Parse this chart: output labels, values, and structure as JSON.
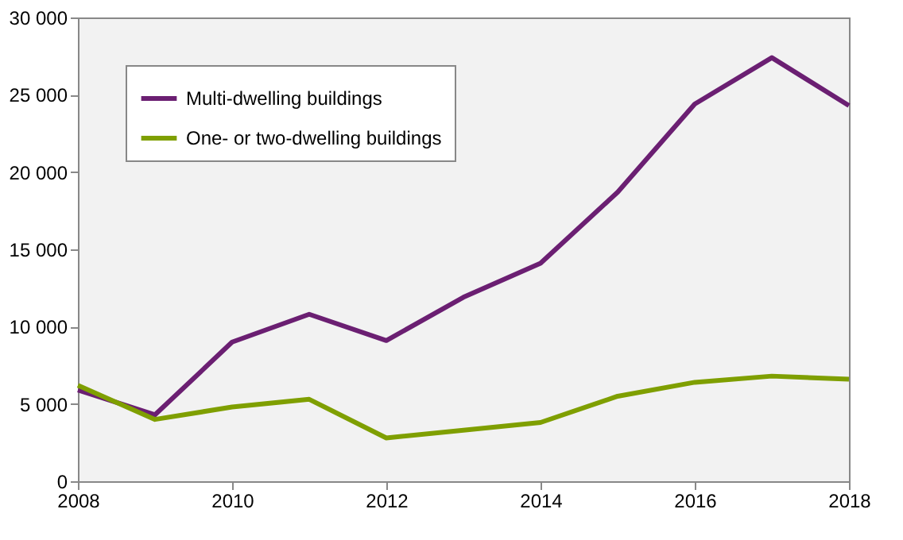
{
  "chart_data": {
    "type": "line",
    "x": [
      2008,
      2009,
      2010,
      2011,
      2012,
      2013,
      2014,
      2015,
      2016,
      2017,
      2018
    ],
    "series": [
      {
        "name": "Multi-dwelling buildings",
        "color": "#6b1f72",
        "values": [
          5900,
          4300,
          9000,
          10800,
          9100,
          11900,
          14100,
          18700,
          24400,
          27400,
          24300
        ]
      },
      {
        "name": "One- or two-dwelling buildings",
        "color": "#7f9f00",
        "values": [
          6200,
          4000,
          4800,
          5300,
          2800,
          3300,
          3800,
          5500,
          6400,
          6800,
          6600
        ]
      }
    ],
    "xlim": [
      2008,
      2018
    ],
    "xticks": [
      2008,
      2010,
      2012,
      2014,
      2016,
      2018
    ],
    "ylim": [
      0,
      30000
    ],
    "yticks": [
      0,
      {
        "value": 5000,
        "label": "5 000"
      },
      {
        "value": 10000,
        "label": "10 000"
      },
      {
        "value": 15000,
        "label": "15 000"
      },
      {
        "value": 20000,
        "label": "20 000"
      },
      {
        "value": 25000,
        "label": "25 000"
      },
      {
        "value": 30000,
        "label": "30 000"
      }
    ],
    "legend": "top left",
    "marker": "none",
    "line_style": "solid"
  }
}
